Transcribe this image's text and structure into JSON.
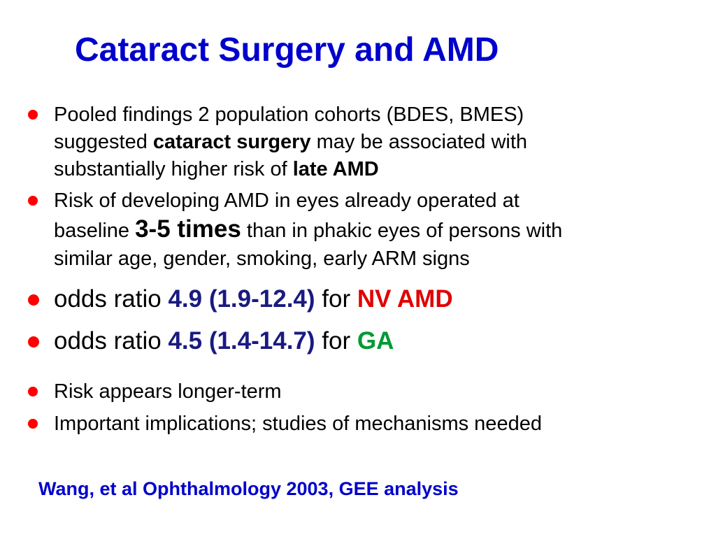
{
  "title": "Cataract Surgery and AMD",
  "bullets": {
    "b1": {
      "l1": "Pooled findings 2 population cohorts (BDES, BMES)",
      "l2_pre": "suggested ",
      "l2_bold": "cataract surgery",
      "l2_post": " may be associated with",
      "l3_pre": "substantially higher risk of ",
      "l3_bold": "late AMD"
    },
    "b2": {
      "l1": "Risk of developing AMD in eyes already operated at",
      "l2_pre": "baseline ",
      "l2_bold": "3-5 times",
      "l2_post": " than in phakic eyes of persons with",
      "l3": "similar age, gender, smoking, early ARM signs"
    },
    "b3": {
      "pre": "odds ratio ",
      "value": "4.9 (1.9-12.4)",
      "mid": " for ",
      "label": "NV AMD"
    },
    "b4": {
      "pre": "odds ratio ",
      "value": "4.5 (1.4-14.7)",
      "mid": " for ",
      "label": "GA"
    },
    "b5": "Risk appears longer-term",
    "b6": "Important implications; studies of mechanisms needed"
  },
  "citation": "Wang, et al Ophthalmology 2003, GEE analysis",
  "colors": {
    "title": "#0000cc",
    "bullet": "#ff0000",
    "value": "#1a1a80",
    "nv_amd": "#e00000",
    "ga": "#009933"
  }
}
